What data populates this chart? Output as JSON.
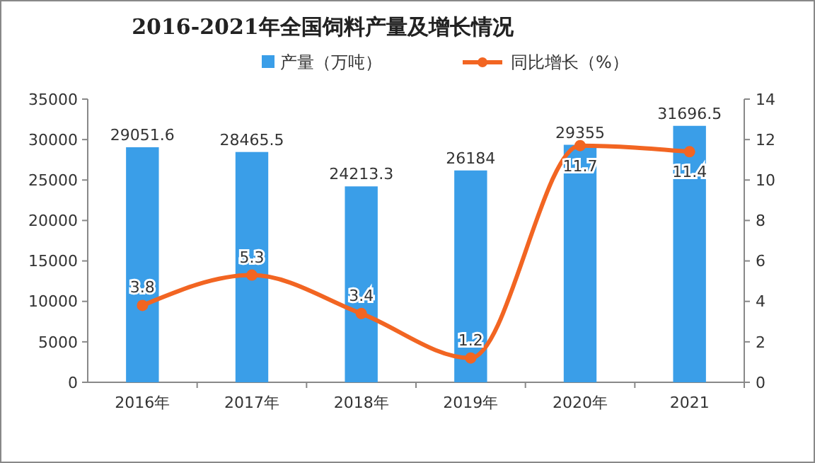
{
  "chart_data": {
    "type": "bar",
    "title": "2016-2021年全国饲料产量及增长情况",
    "categories": [
      "2016年",
      "2017年",
      "2018年",
      "2019年",
      "2020年",
      "2021"
    ],
    "series": [
      {
        "name": "产量（万吨）",
        "color": "#3a9ee8",
        "values": [
          29051.6,
          28465.5,
          24213.3,
          26184,
          29355,
          31696.5
        ]
      },
      {
        "name": "同比增长（%）",
        "type": "line",
        "axis": "y2",
        "color": "#f26522",
        "values": [
          3.8,
          5.3,
          3.4,
          1.2,
          11.7,
          11.4
        ]
      }
    ],
    "ylim": [
      0,
      35000
    ],
    "yticks": [
      0,
      5000,
      10000,
      15000,
      20000,
      25000,
      30000,
      35000
    ],
    "y2lim": [
      0,
      14
    ],
    "y2ticks": [
      0,
      2,
      4,
      6,
      8,
      10,
      12,
      14
    ],
    "data_labels": true,
    "legend": "top",
    "marker": "circle",
    "grid": false
  }
}
